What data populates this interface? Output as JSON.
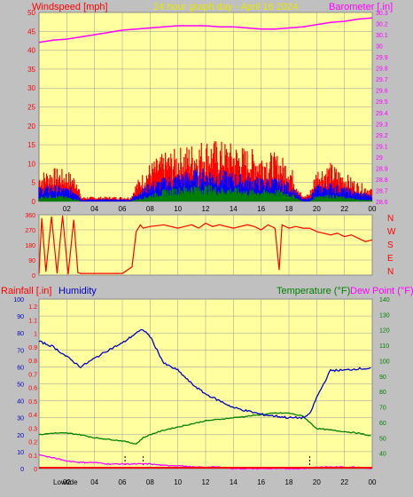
{
  "colors": {
    "background": "#c0c0c0",
    "plot_bg": "#ffffa0",
    "wind": "#ff0000",
    "wind_avg": "#0000ff",
    "wind_low": "#008000",
    "barometer": "#ff00ff",
    "direction": "#ff0000",
    "humidity": "#0000c0",
    "temperature": "#008000",
    "dewpoint": "#ff00ff",
    "rain": "#ff0000",
    "grid": "#999999",
    "title": "#e8e800"
  },
  "header": {
    "windspeed_label": "Windspeed [mph]",
    "title": "24 hour graph day - April 16 2024",
    "barometer_label": "Barometer [.in]"
  },
  "lower_header": {
    "rainfall_label": "Rainfall [.in]",
    "humidity_label": "Humidity",
    "temperature_label": "Temperature (°F)",
    "dewpoint_label": "Dew Point (°F)"
  },
  "footer": {
    "lowtide_label": "Lowtide"
  },
  "chart_data": [
    {
      "type": "line",
      "name": "wind-barometer",
      "x_ticks": [
        "02",
        "04",
        "06",
        "08",
        "10",
        "12",
        "14",
        "16",
        "18",
        "20",
        "22",
        "00"
      ],
      "y_left_ticks": [
        "0",
        "5",
        "10",
        "15",
        "20",
        "25",
        "30",
        "35",
        "40",
        "45",
        "50"
      ],
      "y_right_ticks": [
        "28.6",
        "28.7",
        "28.8",
        "28.9",
        "29",
        "29.1",
        "29.2",
        "29.3",
        "29.4",
        "29.5",
        "29.6",
        "29.7",
        "29.8",
        "29.9",
        "30",
        "30.1",
        "30.2",
        "30.3"
      ],
      "ylim_left": [
        0,
        50
      ],
      "ylim_right": [
        28.6,
        30.3
      ],
      "series": [
        {
          "name": "gust",
          "x": [
            0,
            1,
            2,
            2.8,
            3,
            6.6,
            7,
            8,
            9,
            10,
            11,
            12,
            13,
            14,
            15,
            16,
            17,
            18,
            19,
            19.5,
            20,
            21,
            22,
            23,
            24
          ],
          "values": [
            6,
            7,
            6.5,
            5,
            1,
            1,
            4,
            8,
            10,
            11,
            12,
            13,
            12.5,
            12,
            11,
            10.5,
            10,
            8.5,
            1,
            2,
            7,
            8,
            6,
            4,
            3
          ]
        },
        {
          "name": "average",
          "x": [
            0,
            1,
            2,
            2.8,
            3,
            6.6,
            7,
            8,
            9,
            10,
            11,
            12,
            13,
            14,
            15,
            16,
            17,
            18,
            19,
            19.5,
            20,
            21,
            22,
            23,
            24
          ],
          "values": [
            3,
            3.5,
            3,
            2.5,
            0.5,
            0.5,
            2,
            4,
            5,
            6,
            6.5,
            7,
            6.5,
            6,
            5.5,
            5,
            5,
            4,
            0.5,
            1,
            3.5,
            4,
            3,
            2,
            1.5
          ]
        },
        {
          "name": "low",
          "x": [
            0,
            1,
            2,
            2.8,
            3,
            6.6,
            7,
            8,
            9,
            10,
            11,
            12,
            13,
            14,
            15,
            16,
            17,
            18,
            19,
            19.5,
            20,
            21,
            22,
            23,
            24
          ],
          "values": [
            1,
            1.5,
            1,
            0.5,
            0,
            0,
            0.5,
            1.5,
            2.5,
            3,
            3.5,
            3.5,
            3,
            3,
            2.5,
            2.5,
            2.5,
            2,
            0,
            0,
            1.5,
            1.5,
            1,
            0.5,
            0.3
          ]
        },
        {
          "name": "barometer",
          "x": [
            0,
            1,
            2,
            3,
            4,
            5,
            6,
            7,
            8,
            9,
            10,
            11,
            12,
            13,
            14,
            15,
            16,
            17,
            18,
            19,
            20,
            21,
            22,
            23,
            24
          ],
          "values": [
            30.03,
            30.05,
            30.06,
            30.08,
            30.1,
            30.12,
            30.14,
            30.15,
            30.16,
            30.17,
            30.18,
            30.18,
            30.18,
            30.17,
            30.17,
            30.16,
            30.15,
            30.15,
            30.16,
            30.17,
            30.19,
            30.21,
            30.22,
            30.24,
            30.25
          ]
        }
      ]
    },
    {
      "type": "line",
      "name": "wind-direction",
      "y_ticks": [
        "0",
        "90",
        "180",
        "270",
        "360"
      ],
      "compass": [
        "N",
        "W",
        "S",
        "E",
        "N"
      ],
      "ylim": [
        0,
        360
      ],
      "series": [
        {
          "name": "direction",
          "x": [
            0,
            0.2,
            0.5,
            0.9,
            1.3,
            1.7,
            2.1,
            2.5,
            2.8,
            3,
            3.5,
            4,
            5,
            6,
            6.7,
            7,
            7.3,
            7.5,
            8,
            9,
            10,
            10.5,
            11,
            11.5,
            12,
            12.5,
            13,
            14,
            15,
            15.5,
            16,
            16.5,
            17,
            17.3,
            17.5,
            18,
            18.5,
            19,
            19.5,
            20,
            20.5,
            21,
            21.5,
            22,
            22.5,
            23,
            23.5,
            24
          ],
          "values": [
            10,
            340,
            20,
            350,
            10,
            355,
            5,
            330,
            15,
            10,
            10,
            10,
            10,
            10,
            50,
            260,
            300,
            280,
            290,
            300,
            280,
            290,
            300,
            280,
            310,
            290,
            300,
            280,
            300,
            290,
            270,
            300,
            280,
            30,
            300,
            280,
            290,
            280,
            280,
            260,
            250,
            240,
            250,
            230,
            240,
            220,
            200,
            210
          ]
        }
      ]
    },
    {
      "type": "line",
      "name": "humidity-temperature",
      "y_left_ticks": [
        "0",
        "0.1",
        "0.2",
        "0.3",
        "0.4",
        "0.5",
        "0.6",
        "0.7",
        "0.8",
        "0.9",
        "1",
        "1.1",
        "1.2"
      ],
      "y_humidity_ticks": [
        "0",
        "10",
        "20",
        "30",
        "40",
        "50",
        "60",
        "70",
        "80",
        "90",
        "100"
      ],
      "y_right_ticks": [
        "40",
        "50",
        "60",
        "70",
        "80",
        "90",
        "100",
        "110",
        "120",
        "130",
        "140"
      ],
      "ylim_humidity": [
        0,
        100
      ],
      "ylim_temperature": [
        30,
        140
      ],
      "series": [
        {
          "name": "humidity",
          "x": [
            0,
            1,
            2,
            3,
            4,
            5,
            6,
            7,
            7.5,
            8,
            9,
            10,
            11,
            12,
            13,
            14,
            15,
            16,
            17,
            18,
            19,
            19.5,
            20,
            21,
            22,
            23,
            24
          ],
          "values": [
            75,
            72,
            66,
            60,
            65,
            70,
            74,
            80,
            82,
            78,
            62,
            58,
            50,
            44,
            40,
            36,
            34,
            32,
            31,
            30,
            30,
            32,
            42,
            58,
            58,
            59,
            59
          ]
        },
        {
          "name": "temperature",
          "x": [
            0,
            1,
            2,
            3,
            4,
            5,
            6,
            7,
            7.5,
            8,
            9,
            10,
            11,
            12,
            13,
            14,
            15,
            16,
            17,
            18,
            19,
            20,
            21,
            22,
            23,
            24
          ],
          "values": [
            52,
            53,
            53,
            52,
            50,
            49,
            48,
            46,
            50,
            52,
            55,
            57,
            59,
            61,
            62,
            63,
            64,
            65,
            66,
            66,
            64,
            56,
            55,
            54,
            53,
            51
          ]
        },
        {
          "name": "dewpoint",
          "x": [
            0,
            1,
            2,
            3,
            4,
            5,
            6,
            7,
            8,
            9,
            10,
            11,
            12,
            13,
            14,
            15,
            16,
            17,
            18,
            19,
            20,
            21,
            22,
            23,
            24
          ],
          "values": [
            39,
            37,
            35,
            34,
            34,
            33,
            33,
            33,
            33,
            32,
            32,
            31,
            31,
            31,
            30,
            30,
            30,
            30,
            30,
            30,
            31,
            31,
            31,
            31,
            30
          ]
        },
        {
          "name": "rain",
          "x": [
            0,
            24
          ],
          "values": [
            0,
            0
          ]
        }
      ],
      "markers": [
        6.2,
        7.5,
        19.5
      ]
    }
  ]
}
